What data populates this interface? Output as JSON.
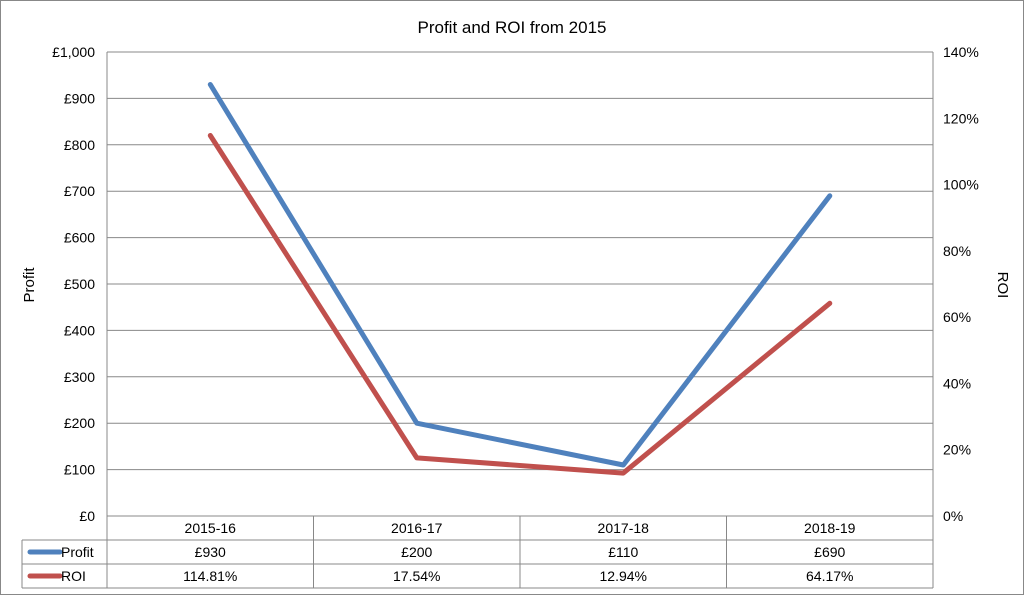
{
  "chart_data": {
    "type": "line",
    "title": "Profit and ROI from 2015",
    "categories": [
      "2015-16",
      "2016-17",
      "2017-18",
      "2018-19"
    ],
    "y_left": {
      "label": "Profit",
      "min": 0,
      "max": 1000,
      "step": 100,
      "tick_labels": [
        "£0",
        "£100",
        "£200",
        "£300",
        "£400",
        "£500",
        "£600",
        "£700",
        "£800",
        "£900",
        "£1,000"
      ]
    },
    "y_right": {
      "label": "ROI",
      "min": 0,
      "max": 140,
      "step": 20,
      "tick_labels": [
        "0%",
        "20%",
        "40%",
        "60%",
        "80%",
        "100%",
        "120%",
        "140%"
      ]
    },
    "series": [
      {
        "name": "Profit",
        "axis": "left",
        "color": "#4f81bd",
        "values": [
          930,
          200,
          110,
          690
        ],
        "table_labels": [
          "£930",
          "£200",
          "£110",
          "£690"
        ]
      },
      {
        "name": "ROI",
        "axis": "right",
        "color": "#c0504d",
        "values": [
          114.81,
          17.54,
          12.94,
          64.17
        ],
        "table_labels": [
          "114.81%",
          "17.54%",
          "12.94%",
          "64.17%"
        ]
      }
    ],
    "grid": true,
    "legend": "data-table"
  }
}
